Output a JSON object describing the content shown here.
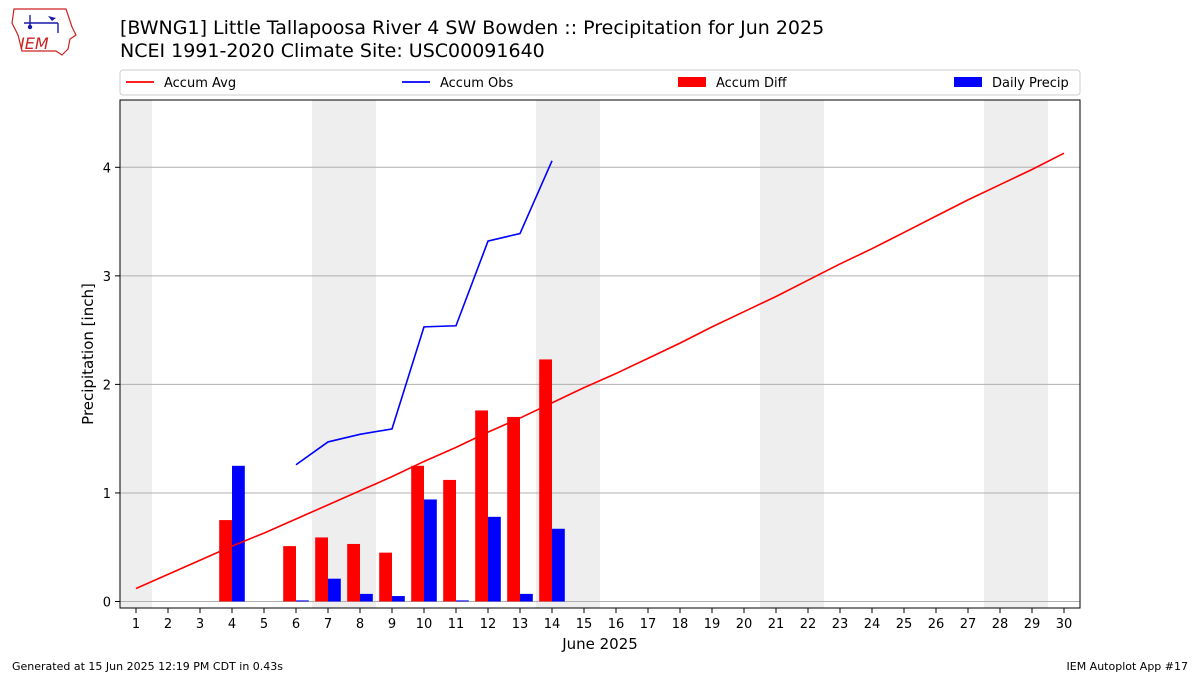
{
  "header": {
    "title_line1": "[BWNG1] Little Tallapoosa River 4 SW Bowden :: Precipitation for Jun 2025",
    "title_line2": "NCEI 1991-2020 Climate Site: USC00091640"
  },
  "logo": {
    "text": "IEM"
  },
  "footer": {
    "generated": "Generated at 15 Jun 2025 12:19 PM CDT in 0.43s",
    "app": "IEM Autoplot App #17"
  },
  "colors": {
    "accum_avg": "#ff0000",
    "accum_obs": "#0000ff",
    "accum_diff": "#ff0000",
    "daily_precip": "#0000ff",
    "weekend_shade": "#eeeeee",
    "grid": "#b0b0b0"
  },
  "chart_data": {
    "type": "bar",
    "xlabel": "June 2025",
    "ylabel": "Precipitation [inch]",
    "xlim": [
      0.5,
      30.5
    ],
    "ylim": [
      -0.06,
      4.62
    ],
    "grid": "horizontal",
    "legend_position": "top",
    "x": [
      1,
      2,
      3,
      4,
      5,
      6,
      7,
      8,
      9,
      10,
      11,
      12,
      13,
      14,
      15,
      16,
      17,
      18,
      19,
      20,
      21,
      22,
      23,
      24,
      25,
      26,
      27,
      28,
      29,
      30
    ],
    "x_tick_labels": [
      "1",
      "2",
      "3",
      "4",
      "5",
      "6",
      "7",
      "8",
      "9",
      "10",
      "11",
      "12",
      "13",
      "14",
      "15",
      "16",
      "17",
      "18",
      "19",
      "20",
      "21",
      "22",
      "23",
      "24",
      "25",
      "26",
      "27",
      "28",
      "29",
      "30"
    ],
    "y_ticks": [
      0,
      1,
      2,
      3,
      4
    ],
    "y_tick_labels": [
      "0",
      "1",
      "2",
      "3",
      "4"
    ],
    "weekend_days": [
      1,
      7,
      8,
      14,
      15,
      21,
      22,
      28,
      29
    ],
    "legend": [
      {
        "label": "Accum Avg",
        "kind": "line",
        "color": "#ff0000"
      },
      {
        "label": "Accum Obs",
        "kind": "line",
        "color": "#0000ff"
      },
      {
        "label": "Accum Diff",
        "kind": "bar",
        "color": "#ff0000"
      },
      {
        "label": "Daily Precip",
        "kind": "bar",
        "color": "#0000ff"
      }
    ],
    "series": [
      {
        "name": "Accum Avg",
        "kind": "line",
        "color": "#ff0000",
        "x": [
          1,
          2,
          3,
          4,
          5,
          6,
          7,
          8,
          9,
          10,
          11,
          12,
          13,
          14,
          15,
          16,
          17,
          18,
          19,
          20,
          21,
          22,
          23,
          24,
          25,
          26,
          27,
          28,
          29,
          30
        ],
        "values": [
          0.12,
          0.25,
          0.38,
          0.51,
          0.63,
          0.76,
          0.89,
          1.02,
          1.15,
          1.29,
          1.42,
          1.56,
          1.69,
          1.83,
          1.97,
          2.1,
          2.24,
          2.38,
          2.53,
          2.67,
          2.81,
          2.96,
          3.11,
          3.25,
          3.4,
          3.55,
          3.7,
          3.84,
          3.98,
          4.13
        ]
      },
      {
        "name": "Accum Obs",
        "kind": "line",
        "color": "#0000ff",
        "x": [
          6,
          7,
          8,
          9,
          10,
          11,
          12,
          13,
          14
        ],
        "values": [
          1.26,
          1.47,
          1.54,
          1.59,
          2.53,
          2.54,
          3.32,
          3.39,
          4.06
        ]
      },
      {
        "name": "Accum Diff",
        "kind": "bar",
        "color": "#ff0000",
        "x": [
          4,
          6,
          7,
          8,
          9,
          10,
          11,
          12,
          13,
          14
        ],
        "values": [
          0.75,
          0.51,
          0.59,
          0.53,
          0.45,
          1.25,
          1.12,
          1.76,
          1.7,
          2.23
        ]
      },
      {
        "name": "Daily Precip",
        "kind": "bar",
        "color": "#0000ff",
        "x": [
          4,
          6,
          7,
          8,
          9,
          10,
          11,
          12,
          13,
          14
        ],
        "values": [
          1.25,
          0.01,
          0.21,
          0.07,
          0.05,
          0.94,
          0.01,
          0.78,
          0.07,
          0.67
        ]
      }
    ]
  }
}
